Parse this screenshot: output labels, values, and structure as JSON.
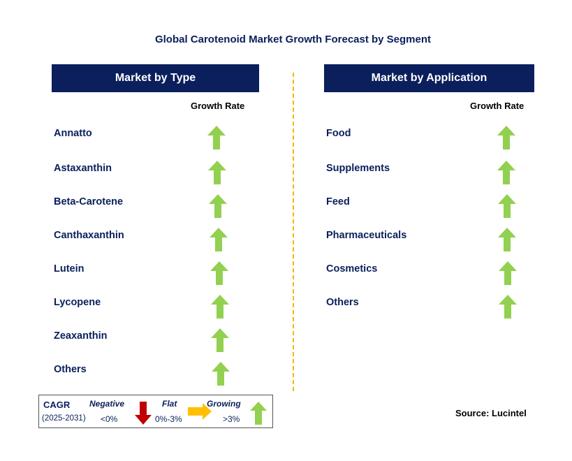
{
  "title": "Global Carotenoid Market Growth Forecast by Segment",
  "colors": {
    "header_bg": "#0a1f5c",
    "growing": "#92d050",
    "negative": "#c00000",
    "flat": "#ffc000",
    "divider": "#f5b800"
  },
  "left": {
    "header": "Market by Type",
    "growth_label": "Growth Rate",
    "items": [
      {
        "label": "Annatto",
        "trend": "growing"
      },
      {
        "label": "Astaxanthin",
        "trend": "growing"
      },
      {
        "label": "Beta-Carotene",
        "trend": "growing"
      },
      {
        "label": "Canthaxanthin",
        "trend": "growing"
      },
      {
        "label": "Lutein",
        "trend": "growing"
      },
      {
        "label": "Lycopene",
        "trend": "growing"
      },
      {
        "label": "Zeaxanthin",
        "trend": "growing"
      },
      {
        "label": "Others",
        "trend": "growing"
      }
    ]
  },
  "right": {
    "header": "Market by Application",
    "growth_label": "Growth Rate",
    "items": [
      {
        "label": "Food",
        "trend": "growing"
      },
      {
        "label": "Supplements",
        "trend": "growing"
      },
      {
        "label": "Feed",
        "trend": "growing"
      },
      {
        "label": "Pharmaceuticals",
        "trend": "growing"
      },
      {
        "label": "Cosmetics",
        "trend": "growing"
      },
      {
        "label": "Others",
        "trend": "growing"
      }
    ]
  },
  "legend": {
    "cagr": "CAGR",
    "period": "(2025-2031)",
    "negative": "Negative",
    "negative_range": "<0%",
    "flat": "Flat",
    "flat_range": "0%-3%",
    "growing": "Growing",
    "growing_range": ">3%"
  },
  "source": "Source: Lucintel"
}
